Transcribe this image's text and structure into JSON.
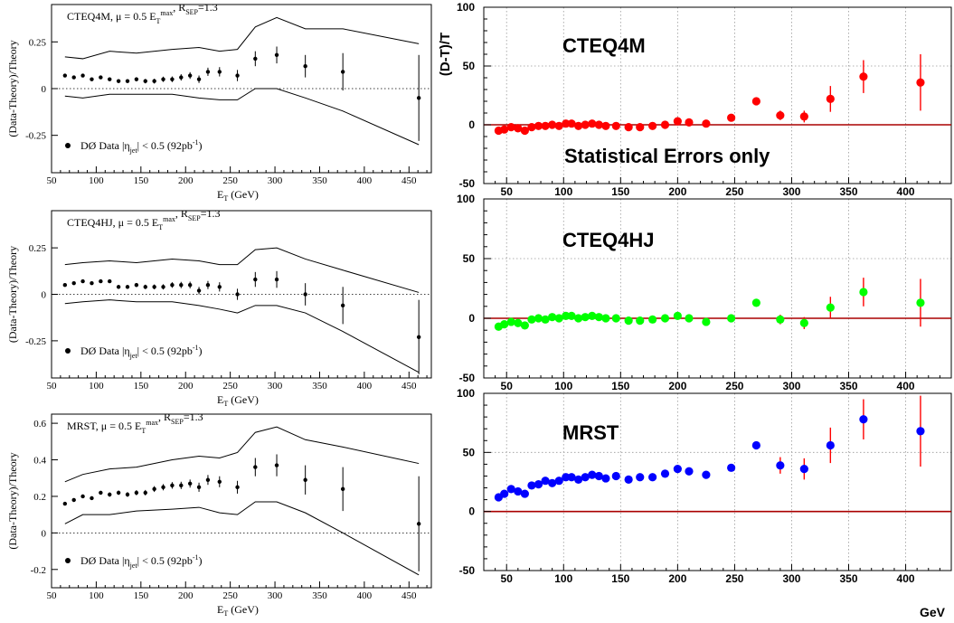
{
  "chart_data": [
    {
      "type": "scatter",
      "title": "CTEQ4M, μ = 0.5 E_T^max, R_SEP=1.3",
      "legend": "DØ Data  |η_jet| < 0.5  (92pb⁻¹)",
      "xlabel": "E_T (GeV)",
      "ylabel": "(Data-Theory)/Theory",
      "xlim": [
        50,
        475
      ],
      "ylim": [
        -0.45,
        0.45
      ],
      "x_ticks": [
        50,
        100,
        150,
        200,
        250,
        300,
        350,
        400,
        450
      ],
      "y_ticks": [
        {
          "v": 0.25,
          "t": "0.25"
        },
        {
          "v": 0,
          "t": "0"
        },
        {
          "v": -0.25,
          "t": "-0.25"
        }
      ],
      "x": [
        65,
        75,
        85,
        95,
        105,
        115,
        125,
        135,
        145,
        155,
        165,
        175,
        185,
        195,
        205,
        215,
        225,
        238,
        258,
        278,
        302,
        334,
        376,
        461
      ],
      "values": [
        0.07,
        0.06,
        0.07,
        0.05,
        0.06,
        0.05,
        0.04,
        0.04,
        0.05,
        0.04,
        0.04,
        0.05,
        0.05,
        0.06,
        0.07,
        0.05,
        0.09,
        0.09,
        0.07,
        0.16,
        0.18,
        0.12,
        0.09,
        -0.05
      ],
      "errors": [
        0.005,
        0.005,
        0.007,
        0.008,
        0.008,
        0.009,
        0.01,
        0.01,
        0.011,
        0.012,
        0.013,
        0.014,
        0.015,
        0.017,
        0.018,
        0.02,
        0.022,
        0.025,
        0.03,
        0.04,
        0.045,
        0.06,
        0.1,
        0.23
      ],
      "band_x": [
        65,
        85,
        115,
        145,
        185,
        215,
        238,
        258,
        278,
        302,
        334,
        376,
        461
      ],
      "band_upper": [
        0.17,
        0.16,
        0.2,
        0.19,
        0.21,
        0.22,
        0.2,
        0.21,
        0.33,
        0.38,
        0.32,
        0.32,
        0.24
      ],
      "band_lower": [
        -0.04,
        -0.05,
        -0.03,
        -0.03,
        -0.03,
        -0.05,
        -0.06,
        -0.06,
        0,
        0,
        -0.05,
        -0.12,
        -0.3
      ]
    },
    {
      "type": "scatter",
      "title": "CTEQ4HJ, μ = 0.5 E_T^max, R_SEP=1.3",
      "legend": "DØ Data  |η_jet| < 0.5  (92pb⁻¹)",
      "xlabel": "E_T (GeV)",
      "ylabel": "(Data-Theory)/Theory",
      "xlim": [
        50,
        475
      ],
      "ylim": [
        -0.45,
        0.45
      ],
      "x_ticks": [
        50,
        100,
        150,
        200,
        250,
        300,
        350,
        400,
        450
      ],
      "y_ticks": [
        {
          "v": 0.25,
          "t": "0.25"
        },
        {
          "v": 0,
          "t": "0"
        },
        {
          "v": -0.25,
          "t": "-0.25"
        }
      ],
      "x": [
        65,
        75,
        85,
        95,
        105,
        115,
        125,
        135,
        145,
        155,
        165,
        175,
        185,
        195,
        205,
        215,
        225,
        238,
        258,
        278,
        302,
        334,
        376,
        461
      ],
      "values": [
        0.05,
        0.06,
        0.07,
        0.06,
        0.07,
        0.07,
        0.04,
        0.04,
        0.05,
        0.04,
        0.04,
        0.04,
        0.05,
        0.05,
        0.05,
        0.02,
        0.05,
        0.04,
        0.0,
        0.08,
        0.08,
        0.0,
        -0.06,
        -0.23
      ],
      "errors": [
        0.005,
        0.005,
        0.007,
        0.008,
        0.008,
        0.009,
        0.01,
        0.01,
        0.011,
        0.012,
        0.013,
        0.014,
        0.015,
        0.017,
        0.018,
        0.02,
        0.022,
        0.025,
        0.03,
        0.04,
        0.045,
        0.06,
        0.1,
        0.2
      ],
      "band_x": [
        65,
        85,
        115,
        145,
        185,
        215,
        238,
        258,
        278,
        302,
        334,
        376,
        461
      ],
      "band_upper": [
        0.16,
        0.17,
        0.18,
        0.17,
        0.19,
        0.18,
        0.16,
        0.16,
        0.24,
        0.25,
        0.19,
        0.13,
        0.01
      ],
      "band_lower": [
        -0.05,
        -0.04,
        -0.03,
        -0.04,
        -0.04,
        -0.06,
        -0.08,
        -0.1,
        -0.06,
        -0.06,
        -0.1,
        -0.2,
        -0.42
      ]
    },
    {
      "type": "scatter",
      "title": "MRST, μ = 0.5 E_T^max, R_SEP=1.3",
      "legend": "DØ Data  |η_jet| < 0.5  (92pb⁻¹)",
      "xlabel": "E_T (GeV)",
      "ylabel": "(Data-Theory)/Theory",
      "xlim": [
        50,
        475
      ],
      "ylim": [
        -0.3,
        0.65
      ],
      "x_ticks": [
        50,
        100,
        150,
        200,
        250,
        300,
        350,
        400,
        450
      ],
      "y_ticks": [
        {
          "v": 0.6,
          "t": "0.6"
        },
        {
          "v": 0.4,
          "t": "0.4"
        },
        {
          "v": 0.2,
          "t": "0.2"
        },
        {
          "v": 0,
          "t": "0"
        },
        {
          "v": -0.2,
          "t": "-0.2"
        }
      ],
      "x": [
        65,
        75,
        85,
        95,
        105,
        115,
        125,
        135,
        145,
        155,
        165,
        175,
        185,
        195,
        205,
        215,
        225,
        238,
        258,
        278,
        302,
        334,
        376,
        461
      ],
      "values": [
        0.16,
        0.18,
        0.2,
        0.19,
        0.22,
        0.21,
        0.22,
        0.21,
        0.22,
        0.22,
        0.24,
        0.25,
        0.26,
        0.26,
        0.27,
        0.25,
        0.29,
        0.28,
        0.25,
        0.36,
        0.37,
        0.29,
        0.24,
        0.05
      ],
      "errors": [
        0.008,
        0.008,
        0.01,
        0.01,
        0.01,
        0.012,
        0.012,
        0.013,
        0.014,
        0.015,
        0.016,
        0.017,
        0.018,
        0.02,
        0.022,
        0.025,
        0.027,
        0.03,
        0.035,
        0.05,
        0.06,
        0.08,
        0.12,
        0.26
      ],
      "band_x": [
        65,
        85,
        115,
        145,
        185,
        215,
        238,
        258,
        278,
        302,
        334,
        376,
        461
      ],
      "band_upper": [
        0.28,
        0.32,
        0.35,
        0.36,
        0.4,
        0.42,
        0.41,
        0.44,
        0.55,
        0.58,
        0.51,
        0.47,
        0.38
      ],
      "band_lower": [
        0.05,
        0.1,
        0.1,
        0.12,
        0.13,
        0.14,
        0.11,
        0.1,
        0.17,
        0.17,
        0.11,
        0.0,
        -0.23
      ]
    },
    {
      "type": "scatter",
      "title": "CTEQ4M",
      "annotation": "Statistical Errors only",
      "ylabel": "(D-T)/T",
      "xlim": [
        30,
        440
      ],
      "ylim": [
        -50,
        100
      ],
      "x_ticks": [
        50,
        100,
        150,
        200,
        250,
        300,
        350,
        400
      ],
      "y_ticks": [
        100,
        50,
        0,
        -50
      ],
      "color": "#ff0000",
      "x": [
        43,
        48,
        54,
        60,
        66,
        72,
        78,
        84,
        90,
        96,
        102,
        107,
        113,
        119,
        125,
        131,
        137,
        146,
        157,
        167,
        178,
        189,
        200,
        210,
        225,
        247,
        269,
        290,
        311,
        334,
        363,
        413
      ],
      "values": [
        -5,
        -4,
        -2,
        -3,
        -5,
        -2,
        -1,
        -1,
        0,
        -1,
        1,
        1,
        -1,
        0,
        1,
        0,
        -1,
        -1,
        -2,
        -2,
        -1,
        0,
        3,
        2,
        1,
        6,
        20,
        8,
        7,
        22,
        41,
        36
      ],
      "errors": [
        0,
        0,
        0,
        0,
        0,
        0,
        0,
        0,
        0,
        0,
        0,
        0,
        0,
        0,
        0,
        0,
        0,
        0,
        0,
        0,
        0,
        0,
        0,
        0,
        0,
        0,
        3,
        4,
        5,
        11,
        14,
        24
      ]
    },
    {
      "type": "scatter",
      "title": "CTEQ4HJ",
      "xlim": [
        30,
        440
      ],
      "ylim": [
        -50,
        100
      ],
      "x_ticks": [
        50,
        100,
        150,
        200,
        250,
        300,
        350,
        400
      ],
      "y_ticks": [
        100,
        50,
        0,
        -50
      ],
      "color": "#00ff00",
      "x": [
        43,
        48,
        54,
        60,
        66,
        72,
        78,
        84,
        90,
        96,
        102,
        107,
        113,
        119,
        125,
        131,
        137,
        146,
        157,
        167,
        178,
        189,
        200,
        210,
        225,
        247,
        269,
        290,
        311,
        334,
        363,
        413
      ],
      "values": [
        -7,
        -5,
        -3,
        -4,
        -6,
        -1,
        0,
        -1,
        1,
        0,
        2,
        2,
        0,
        1,
        2,
        1,
        0,
        0,
        -2,
        -2,
        -1,
        0,
        2,
        0,
        -3,
        0,
        13,
        -1,
        -4,
        9,
        22,
        13
      ],
      "errors": [
        0,
        0,
        0,
        0,
        0,
        0,
        0,
        0,
        0,
        0,
        0,
        0,
        0,
        0,
        0,
        0,
        0,
        0,
        0,
        0,
        0,
        0,
        0,
        0,
        0,
        0,
        3,
        4,
        5,
        9,
        12,
        20
      ]
    },
    {
      "type": "scatter",
      "title": "MRST",
      "xlabel": "GeV",
      "xlim": [
        30,
        440
      ],
      "ylim": [
        -50,
        100
      ],
      "x_ticks": [
        50,
        100,
        150,
        200,
        250,
        300,
        350,
        400
      ],
      "y_ticks": [
        100,
        50,
        0,
        -50
      ],
      "color": "#0000ff",
      "x": [
        43,
        48,
        54,
        60,
        66,
        72,
        78,
        84,
        90,
        96,
        102,
        107,
        113,
        119,
        125,
        131,
        137,
        146,
        157,
        167,
        178,
        189,
        200,
        210,
        225,
        247,
        269,
        290,
        311,
        334,
        363,
        413
      ],
      "values": [
        12,
        15,
        19,
        17,
        15,
        22,
        23,
        26,
        24,
        26,
        29,
        29,
        27,
        29,
        31,
        30,
        28,
        30,
        27,
        29,
        29,
        32,
        36,
        34,
        31,
        37,
        56,
        39,
        36,
        56,
        78,
        68
      ],
      "errors": [
        0,
        0,
        0,
        0,
        0,
        0,
        0,
        0,
        0,
        0,
        0,
        0,
        0,
        0,
        0,
        0,
        0,
        0,
        0,
        0,
        0,
        0,
        0,
        0,
        0,
        0,
        3,
        7,
        9,
        15,
        17,
        30
      ]
    }
  ]
}
